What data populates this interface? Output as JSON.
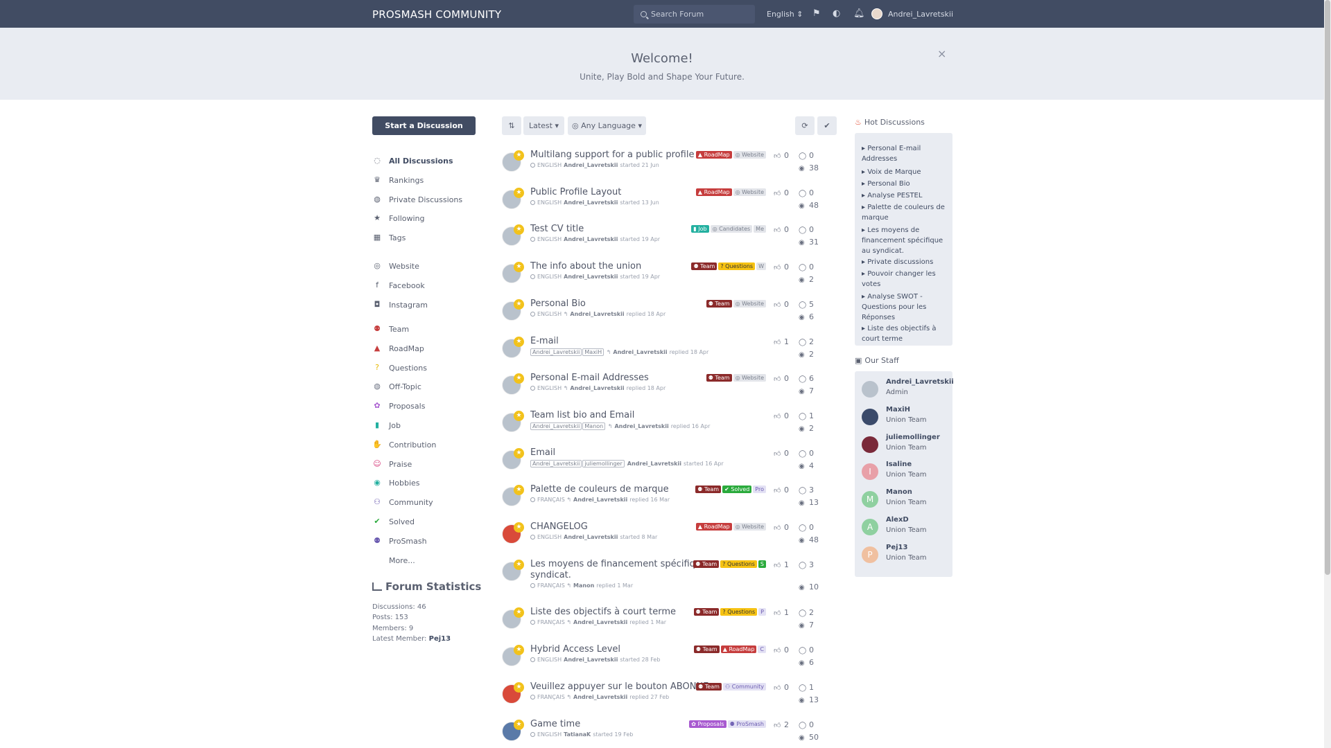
{
  "header": {
    "brand": "PROSMASH COMMUNITY",
    "search_placeholder": "Search Forum",
    "language": "English",
    "username": "Andrei_Lavretskii"
  },
  "hero": {
    "title": "Welcome!",
    "subtitle": "Unite, Play Bold and Shape Your Future.",
    "close": "×"
  },
  "toolbar": {
    "start_label": "Start a Discussion",
    "sort_label": "Latest",
    "language_label": "Any Language"
  },
  "nav": {
    "main": [
      {
        "label": "All Discussions",
        "icon": "chat-bubbles-icon",
        "glyph": "◌"
      },
      {
        "label": "Rankings",
        "icon": "trophy-icon",
        "glyph": "♛"
      },
      {
        "label": "Private Discussions",
        "icon": "private-chat-icon",
        "glyph": "◍"
      },
      {
        "label": "Following",
        "icon": "star-icon",
        "glyph": "★"
      },
      {
        "label": "Tags",
        "icon": "tags-icon",
        "glyph": "▦"
      }
    ],
    "links": [
      {
        "label": "Website",
        "icon": "globe-icon",
        "glyph": "◎"
      },
      {
        "label": "Facebook",
        "icon": "facebook-icon",
        "glyph": "f"
      },
      {
        "label": "Instagram",
        "icon": "instagram-icon",
        "glyph": "◘"
      }
    ],
    "tags": [
      {
        "label": "Team",
        "icon": "team-icon",
        "glyph": "⚉",
        "color": "#c63d3d"
      },
      {
        "label": "RoadMap",
        "icon": "roadmap-icon",
        "glyph": "▲",
        "color": "#c63d3d"
      },
      {
        "label": "Questions",
        "icon": "question-icon",
        "glyph": "?",
        "color": "#e6b800"
      },
      {
        "label": "Off-Topic",
        "icon": "off-topic-icon",
        "glyph": "◍",
        "color": "#6a7080"
      },
      {
        "label": "Proposals",
        "icon": "proposals-icon",
        "glyph": "✿",
        "color": "#a85ad0"
      },
      {
        "label": "Job",
        "icon": "job-icon",
        "glyph": "▮",
        "color": "#23b0a0"
      },
      {
        "label": "Contribution",
        "icon": "contribution-icon",
        "glyph": "✋",
        "color": "#8b2a2a"
      },
      {
        "label": "Praise",
        "icon": "praise-icon",
        "glyph": "☺",
        "color": "#d63a7a"
      },
      {
        "label": "Hobbies",
        "icon": "hobbies-icon",
        "glyph": "◉",
        "color": "#23b0a0"
      },
      {
        "label": "Community",
        "icon": "community-icon",
        "glyph": "⚇",
        "color": "#6a5ab0"
      },
      {
        "label": "Solved",
        "icon": "check-icon",
        "glyph": "✔",
        "color": "#2aaa3c"
      },
      {
        "label": "ProSmash",
        "icon": "prosmash-icon",
        "glyph": "⚉",
        "color": "#6a5ab0"
      },
      {
        "label": "More...",
        "icon": "",
        "glyph": "",
        "color": "#6a7080"
      }
    ]
  },
  "stats": {
    "title": "Forum Statistics",
    "discussions": "Discussions: 46",
    "posts": "Posts: 153",
    "members": "Members: 9",
    "latest_label": "Latest Member:",
    "latest_member": "Pej13"
  },
  "discussions": [
    {
      "title": "Multilang support for a public profile",
      "lang": "ENGLISH",
      "users": [],
      "user": "Andrei_Lavretskii",
      "reply": false,
      "action": "started 21 Jun",
      "tags": [
        {
          "t": "RoadMap",
          "c": "red"
        },
        {
          "t": "Website",
          "c": "grey"
        }
      ],
      "likes": "0",
      "replies": "0",
      "views": "38",
      "avatarColor": "#b9c2cc"
    },
    {
      "title": "Public Profile Layout",
      "lang": "ENGLISH",
      "users": [],
      "user": "Andrei_Lavretskii",
      "reply": false,
      "action": "started 13 Jun",
      "tags": [
        {
          "t": "RoadMap",
          "c": "red"
        },
        {
          "t": "Website",
          "c": "grey"
        }
      ],
      "likes": "0",
      "replies": "0",
      "views": "48",
      "avatarColor": "#b9c2cc"
    },
    {
      "title": "Test CV title",
      "lang": "ENGLISH",
      "users": [],
      "user": "Andrei_Lavretskii",
      "reply": false,
      "action": "started 19 Apr",
      "tags": [
        {
          "t": "Job",
          "c": "teal"
        },
        {
          "t": "Candidates",
          "c": "grey"
        },
        {
          "t": "Me",
          "c": "grey"
        }
      ],
      "likes": "0",
      "replies": "0",
      "views": "31",
      "avatarColor": "#b9c2cc"
    },
    {
      "title": "The info about the union",
      "lang": "ENGLISH",
      "users": [],
      "user": "Andrei_Lavretskii",
      "reply": false,
      "action": "started 19 Apr",
      "tags": [
        {
          "t": "Team",
          "c": "maroon"
        },
        {
          "t": "Questions",
          "c": "yellow"
        },
        {
          "t": "W",
          "c": "grey"
        }
      ],
      "likes": "0",
      "replies": "0",
      "views": "2",
      "avatarColor": "#b9c2cc"
    },
    {
      "title": "Personal Bio",
      "lang": "ENGLISH",
      "users": [],
      "user": "Andrei_Lavretskii",
      "reply": true,
      "action": "replied 18 Apr",
      "tags": [
        {
          "t": "Team",
          "c": "maroon"
        },
        {
          "t": "Website",
          "c": "grey"
        }
      ],
      "likes": "0",
      "replies": "5",
      "views": "6",
      "avatarColor": "#b9c2cc"
    },
    {
      "title": "E-mail",
      "lang": "",
      "users": [
        "Andrei_Lavretskii",
        "MaxiH"
      ],
      "user": "Andrei_Lavretskii",
      "reply": true,
      "action": "replied 18 Apr",
      "tags": [],
      "likes": "1",
      "replies": "2",
      "views": "2",
      "avatarColor": "#b9c2cc"
    },
    {
      "title": "Personal E-mail Addresses",
      "lang": "ENGLISH",
      "users": [],
      "user": "Andrei_Lavretskii",
      "reply": true,
      "action": "replied 18 Apr",
      "tags": [
        {
          "t": "Team",
          "c": "maroon"
        },
        {
          "t": "Website",
          "c": "grey"
        }
      ],
      "likes": "0",
      "replies": "6",
      "views": "7",
      "avatarColor": "#b9c2cc"
    },
    {
      "title": "Team list bio and Email",
      "lang": "",
      "users": [
        "Andrei_Lavretskii",
        "Manon"
      ],
      "user": "Andrei_Lavretskii",
      "reply": true,
      "action": "replied 16 Apr",
      "tags": [],
      "likes": "0",
      "replies": "1",
      "views": "2",
      "avatarColor": "#b9c2cc"
    },
    {
      "title": "Email",
      "lang": "",
      "users": [
        "Andrei_Lavretskii",
        "juliemollinger"
      ],
      "user": "Andrei_Lavretskii",
      "reply": false,
      "action": "started 16 Apr",
      "tags": [],
      "likes": "0",
      "replies": "0",
      "views": "4",
      "avatarColor": "#b9c2cc"
    },
    {
      "title": "Palette de couleurs de marque",
      "lang": "FRANÇAIS",
      "users": [],
      "user": "Andrei_Lavretskii",
      "reply": true,
      "action": "replied 16 Mar",
      "tags": [
        {
          "t": "Team",
          "c": "maroon"
        },
        {
          "t": "Solved",
          "c": "green"
        },
        {
          "t": "Pro",
          "c": "lav"
        }
      ],
      "likes": "0",
      "replies": "3",
      "views": "13",
      "avatarColor": "#b9c2cc"
    },
    {
      "title": "CHANGELOG",
      "lang": "ENGLISH",
      "users": [],
      "user": "Andrei_Lavretskii",
      "reply": false,
      "action": "started 8 Mar",
      "tags": [
        {
          "t": "RoadMap",
          "c": "red"
        },
        {
          "t": "Website",
          "c": "grey"
        }
      ],
      "likes": "0",
      "replies": "0",
      "views": "48",
      "avatarColor": "#d94a3a"
    },
    {
      "title": "Les moyens de financement spécifique",
      "title2": "syndicat.",
      "lang": "FRANÇAIS",
      "users": [],
      "user": "Manon",
      "reply": true,
      "action": "replied 1 Mar",
      "tags": [
        {
          "t": "Team",
          "c": "maroon"
        },
        {
          "t": "Questions",
          "c": "yellow"
        },
        {
          "t": "S",
          "c": "green"
        }
      ],
      "likes": "1",
      "replies": "3",
      "views": "10",
      "avatarColor": "#b9c2cc"
    },
    {
      "title": "Liste des objectifs à court terme",
      "lang": "FRANÇAIS",
      "users": [],
      "user": "Andrei_Lavretskii",
      "reply": true,
      "action": "replied 1 Mar",
      "tags": [
        {
          "t": "Team",
          "c": "maroon"
        },
        {
          "t": "Questions",
          "c": "yellow"
        },
        {
          "t": "P",
          "c": "lav"
        }
      ],
      "likes": "1",
      "replies": "2",
      "views": "7",
      "avatarColor": "#b9c2cc"
    },
    {
      "title": "Hybrid Access Level",
      "lang": "ENGLISH",
      "users": [],
      "user": "Andrei_Lavretskii",
      "reply": false,
      "action": "started 28 Feb",
      "tags": [
        {
          "t": "Team",
          "c": "maroon"
        },
        {
          "t": "RoadMap",
          "c": "red"
        },
        {
          "t": "C",
          "c": "lav"
        }
      ],
      "likes": "0",
      "replies": "0",
      "views": "6",
      "avatarColor": "#b9c2cc"
    },
    {
      "title": "Veuillez appuyer sur le bouton ABONNE",
      "lang": "FRANÇAIS",
      "users": [],
      "user": "Andrei_Lavretskii",
      "reply": true,
      "action": "replied 27 Feb",
      "tags": [
        {
          "t": "Team",
          "c": "maroon"
        },
        {
          "t": "Community",
          "c": "lav"
        }
      ],
      "likes": "0",
      "replies": "1",
      "views": "13",
      "avatarColor": "#d94a3a"
    },
    {
      "title": "Game time",
      "lang": "ENGLISH",
      "users": [],
      "user": "TatianaK",
      "reply": false,
      "action": "started 19 Feb",
      "tags": [
        {
          "t": "Proposals",
          "c": "purple"
        },
        {
          "t": "ProSmash",
          "c": "lav"
        }
      ],
      "likes": "2",
      "replies": "0",
      "views": "50",
      "avatarColor": "#5a7aa8"
    }
  ],
  "hot": {
    "title": "Hot Discussions",
    "items": [
      "Personal E-mail Addresses",
      "Voix de Marque",
      "Personal Bio",
      "Analyse PESTEL",
      "Palette de couleurs de marque",
      "Les moyens de financement spécifique au syndicat.",
      "Private discussions",
      "Pouvoir changer les votes",
      "Analyse SWOT - Questions pour les Réponses",
      "Liste des objectifs à court terme"
    ]
  },
  "staff": {
    "title": "Our Staff",
    "members": [
      {
        "name": "Andrei_Lavretskii",
        "role": "Admin",
        "letter": "",
        "color": "#b9c2cc"
      },
      {
        "name": "MaxiH",
        "role": "Union Team",
        "letter": "",
        "color": "#3a4a6a"
      },
      {
        "name": "juliemollinger",
        "role": "Union Team",
        "letter": "",
        "color": "#7a2a3a"
      },
      {
        "name": "Isaline",
        "role": "Union Team",
        "letter": "I",
        "color": "#e8a0a8"
      },
      {
        "name": "Manon",
        "role": "Union Team",
        "letter": "M",
        "color": "#8fd0a0"
      },
      {
        "name": "AlexD",
        "role": "Union Team",
        "letter": "A",
        "color": "#8fd0a0"
      },
      {
        "name": "Pej13",
        "role": "Union Team",
        "letter": "P",
        "color": "#f0c0a0"
      }
    ]
  }
}
